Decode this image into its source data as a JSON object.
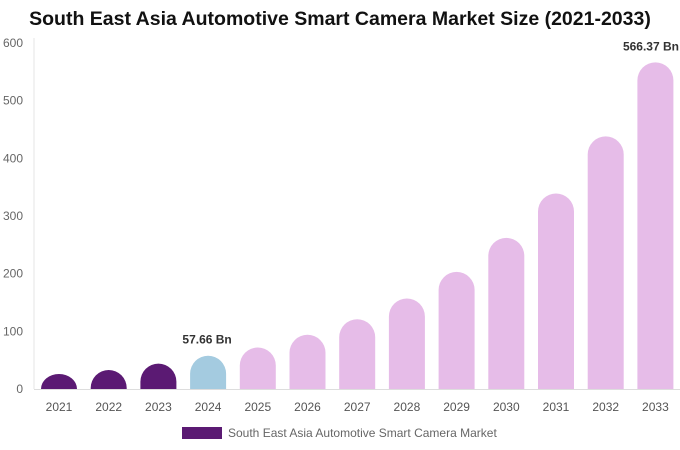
{
  "chart_data": {
    "type": "bar",
    "title": "South East Asia Automotive Smart Camera Market Size (2021-2033)",
    "categories": [
      "2021",
      "2022",
      "2023",
      "2024",
      "2025",
      "2026",
      "2027",
      "2028",
      "2029",
      "2030",
      "2031",
      "2032",
      "2033"
    ],
    "series": [
      {
        "name": "South East Asia Automotive Smart Camera Market",
        "values": [
          26,
          33,
          44,
          57.66,
          72,
          94,
          121,
          157,
          203,
          262,
          339,
          438,
          566.37
        ]
      }
    ],
    "data_labels": [
      {
        "category": "2024",
        "text": "57.66 Bn"
      },
      {
        "category": "2033",
        "text": "566.37 Bn"
      }
    ],
    "yticks": [
      "0",
      "100",
      "200",
      "300",
      "400",
      "500",
      "600"
    ],
    "ylim": [
      0,
      600
    ],
    "xlabel": "",
    "ylabel": "",
    "grid": false,
    "legend_position": "bottom-left",
    "colors": {
      "historical": "#5b1a73",
      "base_year": "#a4cbe0",
      "forecast": "#e6bce8",
      "legend": "#5b1a73"
    }
  }
}
